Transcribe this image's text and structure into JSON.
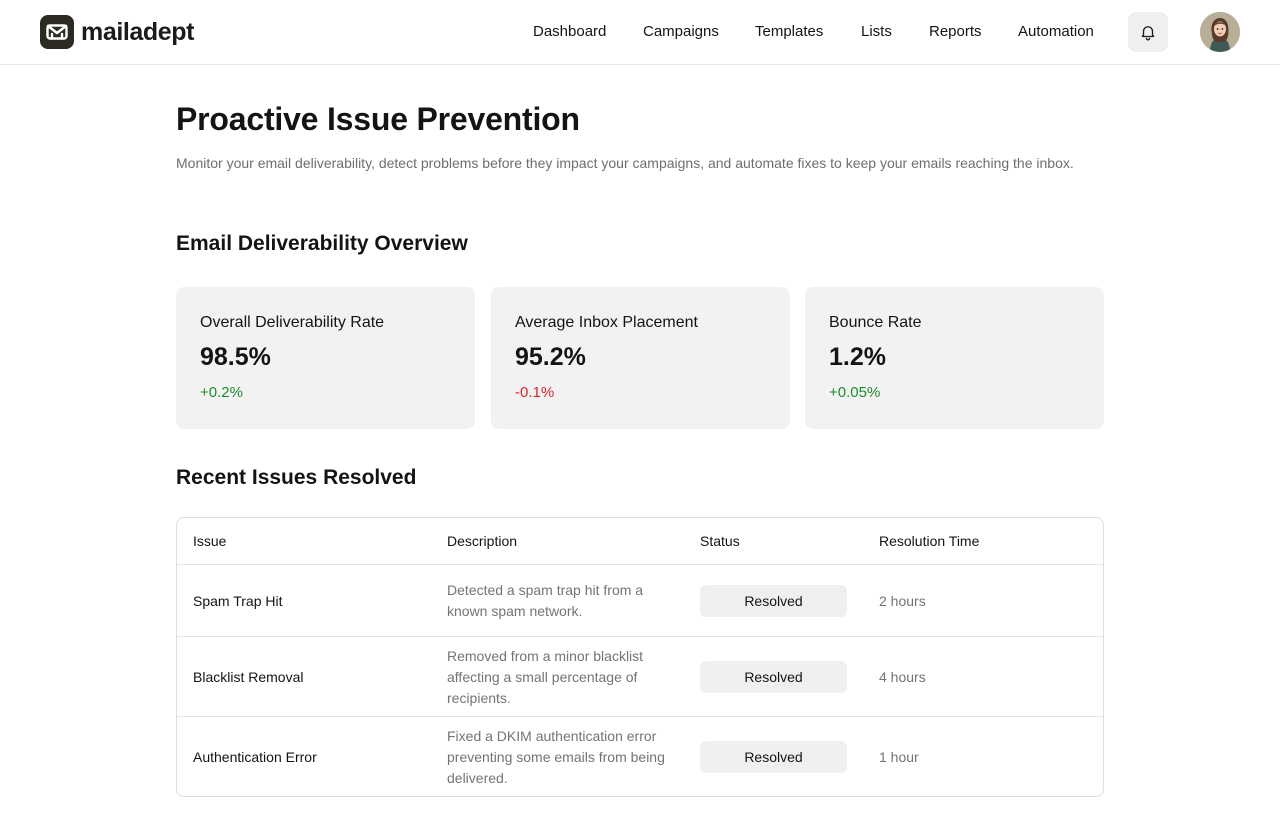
{
  "brand": {
    "name": "mailadept"
  },
  "nav": {
    "items": [
      {
        "label": "Dashboard"
      },
      {
        "label": "Campaigns"
      },
      {
        "label": "Templates"
      },
      {
        "label": "Lists"
      },
      {
        "label": "Reports"
      },
      {
        "label": "Automation"
      }
    ],
    "icons": {
      "notifications": "bell-icon",
      "profile": "avatar"
    }
  },
  "page": {
    "title": "Proactive Issue Prevention",
    "description": "Monitor your email deliverability, detect problems before they impact your campaigns, and automate fixes to keep your emails reaching the inbox."
  },
  "overview": {
    "title": "Email Deliverability Overview",
    "cards": [
      {
        "label": "Overall Deliverability Rate",
        "value": "98.5%",
        "delta": "+0.2%",
        "delta_color": "#1f8a2e"
      },
      {
        "label": "Average Inbox Placement",
        "value": "95.2%",
        "delta": "-0.1%",
        "delta_color": "#d7262d"
      },
      {
        "label": "Bounce Rate",
        "value": "1.2%",
        "delta": "+0.05%",
        "delta_color": "#1f8a2e"
      }
    ]
  },
  "issues": {
    "title": "Recent Issues Resolved",
    "columns": [
      "Issue",
      "Description",
      "Status",
      "Resolution Time"
    ],
    "rows": [
      {
        "issue": "Spam Trap Hit",
        "description": "Detected a spam trap hit from a known spam network.",
        "status": "Resolved",
        "time": "2 hours"
      },
      {
        "issue": "Blacklist Removal",
        "description": "Removed from a minor blacklist affecting a small percentage of recipients.",
        "status": "Resolved",
        "time": "4 hours"
      },
      {
        "issue": "Authentication Error",
        "description": "Fixed a DKIM authentication error preventing some emails from being delivered.",
        "status": "Resolved",
        "time": "1 hour"
      }
    ]
  }
}
